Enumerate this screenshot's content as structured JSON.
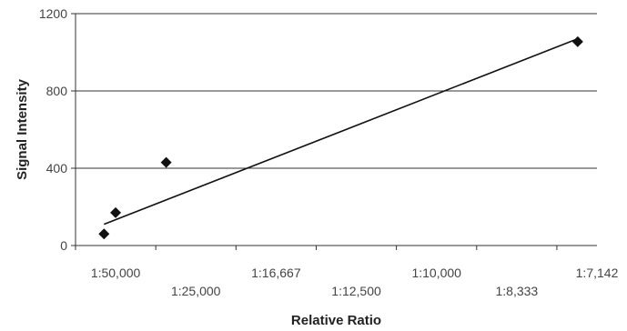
{
  "chart_data": {
    "type": "scatter",
    "title": "",
    "xlabel": "Relative Ratio",
    "ylabel": "Signal Intensity",
    "x_ticks": [
      "1:50,000",
      "1:25,000",
      "1:16,667",
      "1:12,500",
      "1:10,000",
      "1:8,333",
      "1:7,142"
    ],
    "x_ticks_as_value": [
      2e-05,
      4e-05,
      6e-05,
      8e-05,
      0.0001,
      0.00012,
      0.00014
    ],
    "xlim": [
      1e-05,
      0.00014
    ],
    "y_ticks": [
      0,
      400,
      800,
      1200
    ],
    "ylim": [
      0,
      1200
    ],
    "grid": "horizontal",
    "series": [
      {
        "marker": "diamond",
        "color": "#111111",
        "points": [
          {
            "x": 1.71e-05,
            "y": 60
          },
          {
            "x": 2e-05,
            "y": 170
          },
          {
            "x": 3.26e-05,
            "y": 430
          },
          {
            "x": 0.0001352,
            "y": 1055
          }
        ]
      }
    ],
    "trendline": {
      "type": "linear",
      "x": [
        1.71e-05,
        0.0001352
      ],
      "y": [
        110,
        1070
      ],
      "color": "#111111"
    }
  }
}
